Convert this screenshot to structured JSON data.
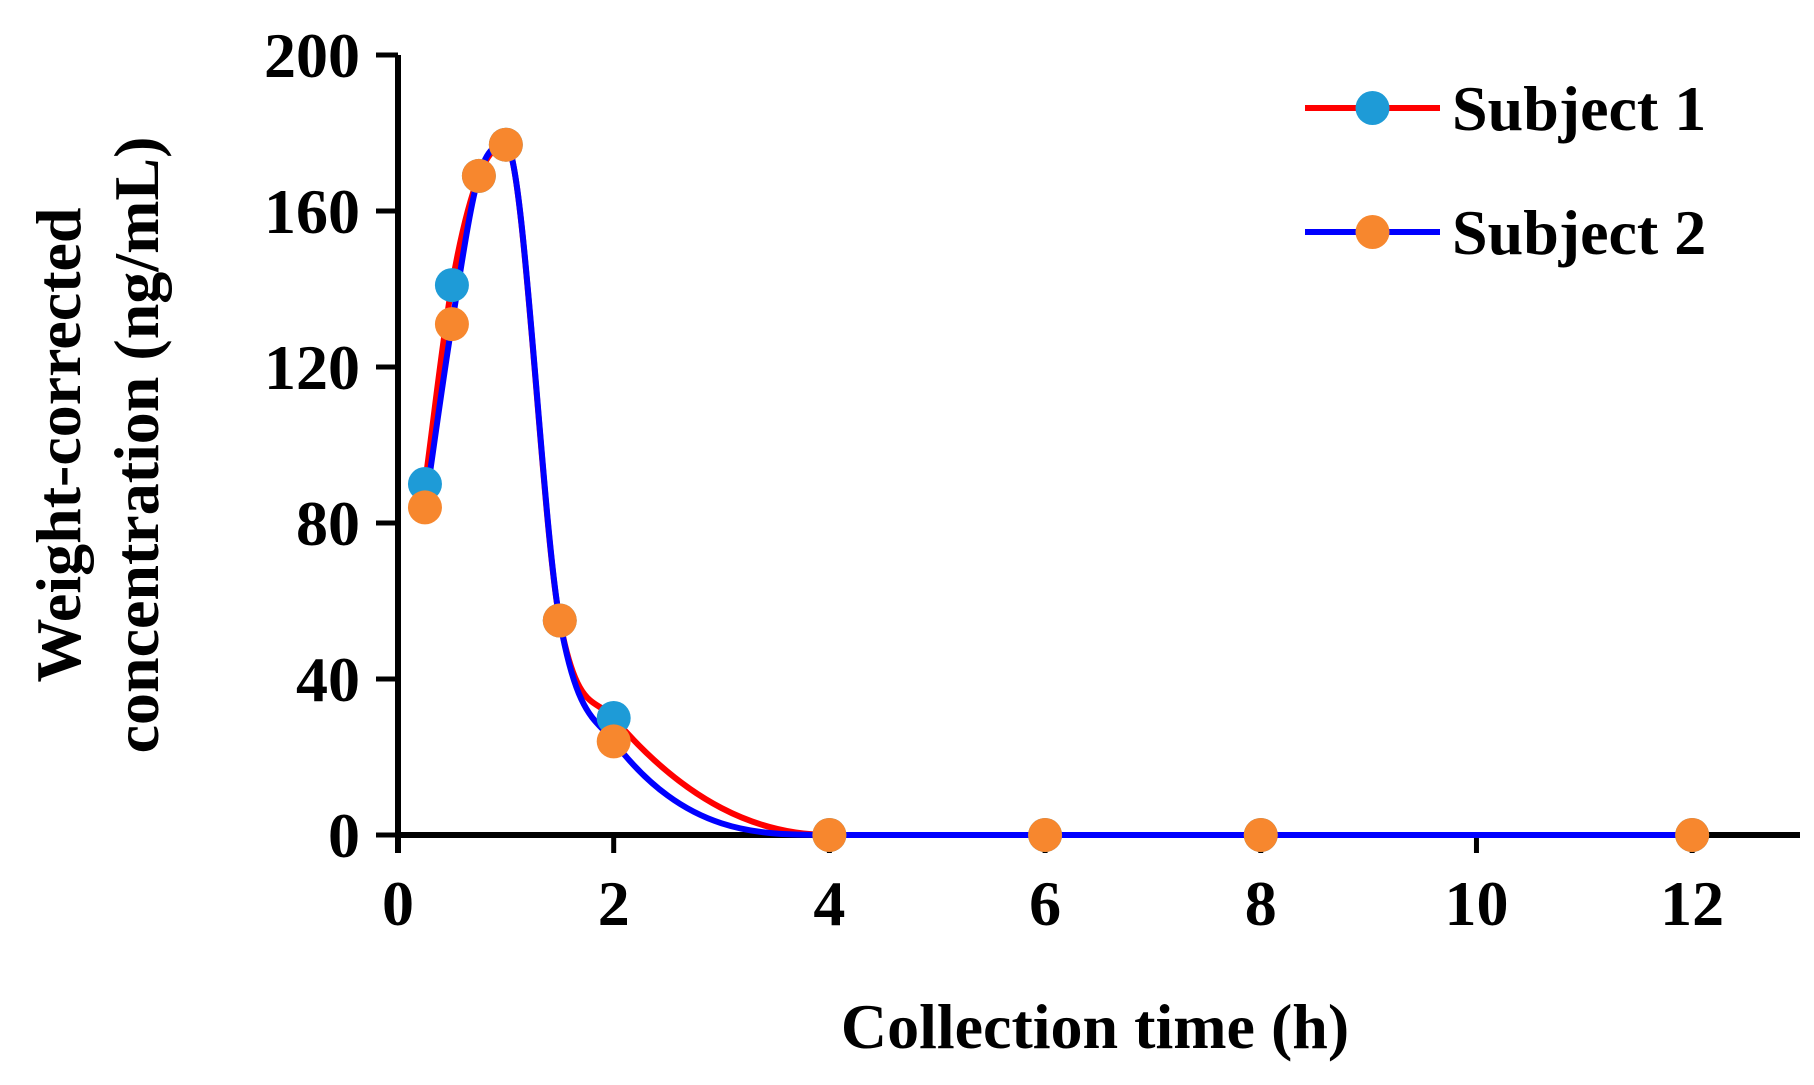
{
  "chart_data": {
    "type": "line",
    "smoothed": true,
    "xlabel": "Collection time (h)",
    "ylabel_lines": [
      "Weight-corrected",
      "concentration (ng/mL)"
    ],
    "xlim": [
      0,
      13
    ],
    "ylim": [
      0,
      200
    ],
    "xticks": [
      0,
      2,
      4,
      6,
      8,
      10,
      12
    ],
    "yticks": [
      0,
      40,
      80,
      120,
      160,
      200
    ],
    "grid": false,
    "legend_position": "top-right",
    "series": [
      {
        "name": "Subject 1",
        "line_color": "#ff0000",
        "marker_color": "#1e9bd7",
        "x": [
          0.25,
          0.5,
          0.75,
          1,
          1.5,
          2,
          4,
          6,
          8,
          12
        ],
        "y": [
          90,
          141,
          169,
          177,
          55,
          30,
          0,
          0,
          0,
          0
        ]
      },
      {
        "name": "Subject 2",
        "line_color": "#0000ff",
        "marker_color": "#f7872e",
        "x": [
          0.25,
          0.5,
          0.75,
          1,
          1.5,
          2,
          4,
          6,
          8,
          12
        ],
        "y": [
          84,
          131,
          169,
          177,
          55,
          24,
          0,
          0,
          0,
          0
        ]
      }
    ]
  }
}
